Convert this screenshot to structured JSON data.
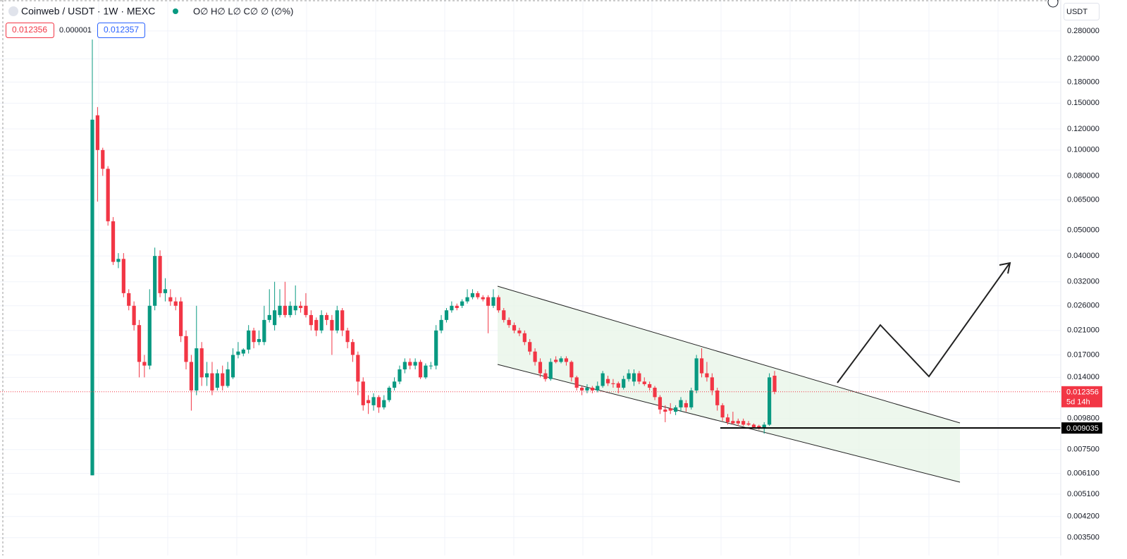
{
  "chart_data": {
    "type": "candlestick",
    "title": "Coinweb / USDT · 1W · MEXC",
    "ohlc_legend": "O∅ H∅ L∅ C∅ ∅ (∅%)",
    "quote": {
      "bid": {
        "value": 0.012356,
        "label": "0.012356"
      },
      "spread": {
        "value": 1e-06,
        "label": "0.000001"
      },
      "ask": {
        "value": 0.012357,
        "label": "0.012357"
      }
    },
    "currency": "USDT",
    "log_scale": true,
    "grid": true,
    "up_color": "#089981",
    "down_color": "#f23645",
    "series": [
      {
        "values": [
          [
            0.006,
            0.26,
            0.006,
            0.13
          ],
          [
            0.135,
            0.145,
            0.064,
            0.1
          ],
          [
            0.1,
            0.102,
            0.08,
            0.085
          ],
          [
            0.085,
            0.087,
            0.052,
            0.054
          ],
          [
            0.054,
            0.056,
            0.037,
            0.038
          ],
          [
            0.038,
            0.041,
            0.036,
            0.039
          ],
          [
            0.039,
            0.041,
            0.028,
            0.029
          ],
          [
            0.029,
            0.03,
            0.025,
            0.026
          ],
          [
            0.026,
            0.027,
            0.021,
            0.022
          ],
          [
            0.022,
            0.023,
            0.014,
            0.016
          ],
          [
            0.016,
            0.017,
            0.014,
            0.0155
          ],
          [
            0.0155,
            0.03,
            0.015,
            0.026
          ],
          [
            0.026,
            0.043,
            0.025,
            0.04
          ],
          [
            0.04,
            0.042,
            0.028,
            0.029
          ],
          [
            0.029,
            0.033,
            0.027,
            0.03
          ],
          [
            0.028,
            0.03,
            0.026,
            0.027
          ],
          [
            0.027,
            0.028,
            0.025,
            0.026
          ],
          [
            0.027,
            0.028,
            0.019,
            0.02
          ],
          [
            0.02,
            0.021,
            0.015,
            0.016
          ],
          [
            0.016,
            0.017,
            0.0105,
            0.0125
          ],
          [
            0.0125,
            0.026,
            0.012,
            0.018
          ],
          [
            0.018,
            0.019,
            0.013,
            0.014
          ],
          [
            0.014,
            0.016,
            0.013,
            0.0145
          ],
          [
            0.0145,
            0.016,
            0.012,
            0.0125
          ],
          [
            0.0128,
            0.015,
            0.0125,
            0.0145
          ],
          [
            0.0145,
            0.0155,
            0.0125,
            0.013
          ],
          [
            0.013,
            0.016,
            0.0128,
            0.015
          ],
          [
            0.014,
            0.018,
            0.0138,
            0.017
          ],
          [
            0.017,
            0.019,
            0.0165,
            0.0175
          ],
          [
            0.0172,
            0.018,
            0.0168,
            0.0178
          ],
          [
            0.0178,
            0.022,
            0.0172,
            0.021
          ],
          [
            0.021,
            0.0215,
            0.018,
            0.019
          ],
          [
            0.019,
            0.021,
            0.0185,
            0.0195
          ],
          [
            0.019,
            0.026,
            0.0185,
            0.023
          ],
          [
            0.023,
            0.03,
            0.0225,
            0.024
          ],
          [
            0.022,
            0.032,
            0.021,
            0.025
          ],
          [
            0.024,
            0.03,
            0.0235,
            0.026
          ],
          [
            0.026,
            0.032,
            0.0235,
            0.024
          ],
          [
            0.024,
            0.027,
            0.0235,
            0.026
          ],
          [
            0.025,
            0.031,
            0.024,
            0.026
          ],
          [
            0.026,
            0.027,
            0.0245,
            0.0255
          ],
          [
            0.026,
            0.029,
            0.0235,
            0.024
          ],
          [
            0.024,
            0.025,
            0.021,
            0.022
          ],
          [
            0.023,
            0.0235,
            0.02,
            0.021
          ],
          [
            0.021,
            0.025,
            0.0205,
            0.024
          ],
          [
            0.024,
            0.0245,
            0.022,
            0.023
          ],
          [
            0.023,
            0.024,
            0.017,
            0.021
          ],
          [
            0.021,
            0.026,
            0.0205,
            0.025
          ],
          [
            0.025,
            0.0255,
            0.02,
            0.021
          ],
          [
            0.021,
            0.0215,
            0.018,
            0.019
          ],
          [
            0.019,
            0.0195,
            0.016,
            0.017
          ],
          [
            0.017,
            0.0175,
            0.012,
            0.0135
          ],
          [
            0.0135,
            0.014,
            0.0105,
            0.011
          ],
          [
            0.0115,
            0.012,
            0.0102,
            0.0112
          ],
          [
            0.011,
            0.0122,
            0.0105,
            0.0118
          ],
          [
            0.0118,
            0.012,
            0.0103,
            0.0108
          ],
          [
            0.0108,
            0.012,
            0.0106,
            0.0115
          ],
          [
            0.0115,
            0.013,
            0.0113,
            0.0128
          ],
          [
            0.0128,
            0.014,
            0.0125,
            0.0135
          ],
          [
            0.0135,
            0.0155,
            0.0132,
            0.015
          ],
          [
            0.015,
            0.0165,
            0.0145,
            0.016
          ],
          [
            0.016,
            0.0165,
            0.015,
            0.0155
          ],
          [
            0.0155,
            0.0165,
            0.015,
            0.016
          ],
          [
            0.016,
            0.0163,
            0.0138,
            0.014
          ],
          [
            0.014,
            0.0158,
            0.0138,
            0.0155
          ],
          [
            0.0155,
            0.016,
            0.015,
            0.0155
          ],
          [
            0.0155,
            0.022,
            0.015,
            0.021
          ],
          [
            0.021,
            0.024,
            0.0205,
            0.023
          ],
          [
            0.023,
            0.0255,
            0.0225,
            0.025
          ],
          [
            0.025,
            0.027,
            0.0245,
            0.026
          ],
          [
            0.026,
            0.0265,
            0.025,
            0.0255
          ],
          [
            0.026,
            0.0275,
            0.0255,
            0.027
          ],
          [
            0.027,
            0.03,
            0.0265,
            0.028
          ],
          [
            0.028,
            0.03,
            0.0275,
            0.029
          ],
          [
            0.029,
            0.0295,
            0.0275,
            0.028
          ],
          [
            0.028,
            0.0285,
            0.027,
            0.0275
          ],
          [
            0.028,
            0.0285,
            0.0205,
            0.026
          ],
          [
            0.026,
            0.03,
            0.0255,
            0.028
          ],
          [
            0.028,
            0.0285,
            0.0245,
            0.025
          ],
          [
            0.025,
            0.0255,
            0.0225,
            0.023
          ],
          [
            0.023,
            0.0235,
            0.0215,
            0.022
          ],
          [
            0.022,
            0.0225,
            0.0205,
            0.021
          ],
          [
            0.021,
            0.0215,
            0.02,
            0.0205
          ],
          [
            0.0205,
            0.021,
            0.0185,
            0.019
          ],
          [
            0.019,
            0.0195,
            0.017,
            0.0175
          ],
          [
            0.0175,
            0.018,
            0.0155,
            0.016
          ],
          [
            0.016,
            0.0165,
            0.014,
            0.0145
          ],
          [
            0.0145,
            0.015,
            0.0135,
            0.0138
          ],
          [
            0.0138,
            0.0165,
            0.0136,
            0.016
          ],
          [
            0.0163,
            0.0168,
            0.0158,
            0.016
          ],
          [
            0.016,
            0.0168,
            0.0158,
            0.0165
          ],
          [
            0.0165,
            0.0168,
            0.0155,
            0.016
          ],
          [
            0.016,
            0.0162,
            0.0135,
            0.014
          ],
          [
            0.014,
            0.0142,
            0.0125,
            0.0128
          ],
          [
            0.0128,
            0.013,
            0.012,
            0.0125
          ],
          [
            0.0125,
            0.0132,
            0.0122,
            0.0128
          ],
          [
            0.0128,
            0.013,
            0.0122,
            0.0125
          ],
          [
            0.0125,
            0.0135,
            0.0123,
            0.013
          ],
          [
            0.013,
            0.0148,
            0.0128,
            0.0145
          ],
          [
            0.0138,
            0.0142,
            0.013,
            0.0133
          ],
          [
            0.0133,
            0.0138,
            0.0128,
            0.0132
          ],
          [
            0.0133,
            0.0135,
            0.0122,
            0.0128
          ],
          [
            0.0128,
            0.0142,
            0.0126,
            0.0138
          ],
          [
            0.0138,
            0.015,
            0.0135,
            0.0145
          ],
          [
            0.0135,
            0.015,
            0.013,
            0.0145
          ],
          [
            0.0145,
            0.0148,
            0.0132,
            0.0135
          ],
          [
            0.0135,
            0.014,
            0.013,
            0.0132
          ],
          [
            0.0132,
            0.0135,
            0.0125,
            0.0128
          ],
          [
            0.0128,
            0.013,
            0.0115,
            0.0118
          ],
          [
            0.0118,
            0.012,
            0.0102,
            0.0106
          ],
          [
            0.0106,
            0.011,
            0.0095,
            0.0104
          ],
          [
            0.0107,
            0.0112,
            0.0102,
            0.0105
          ],
          [
            0.0104,
            0.011,
            0.0101,
            0.0108
          ],
          [
            0.0108,
            0.0118,
            0.0104,
            0.0115
          ],
          [
            0.0112,
            0.0115,
            0.0104,
            0.0108
          ],
          [
            0.0108,
            0.0128,
            0.0106,
            0.0125
          ],
          [
            0.0125,
            0.017,
            0.0122,
            0.0165
          ],
          [
            0.0165,
            0.018,
            0.014,
            0.0145
          ],
          [
            0.0145,
            0.016,
            0.0135,
            0.014
          ],
          [
            0.014,
            0.0145,
            0.012,
            0.0125
          ],
          [
            0.0125,
            0.0128,
            0.0105,
            0.011
          ],
          [
            0.011,
            0.0112,
            0.0096,
            0.0099
          ],
          [
            0.0099,
            0.0102,
            0.0093,
            0.0095
          ],
          [
            0.0096,
            0.0104,
            0.0093,
            0.0094
          ],
          [
            0.0096,
            0.0098,
            0.0092,
            0.0094
          ],
          [
            0.0096,
            0.0098,
            0.0092,
            0.0093
          ],
          [
            0.0094,
            0.0096,
            0.0092,
            0.0093
          ],
          [
            0.0093,
            0.0094,
            0.009,
            0.0091
          ],
          [
            0.0092,
            0.0093,
            0.0089,
            0.009
          ],
          [
            0.009,
            0.0095,
            0.0086,
            0.0093
          ],
          [
            0.0093,
            0.0145,
            0.0092,
            0.014
          ],
          [
            0.0142,
            0.0148,
            0.0121,
            0.012356
          ]
        ]
      }
    ],
    "ylim": [
      0.003,
      0.366
    ],
    "yticks": [
      {
        "value": 0.28,
        "label": "0.280000"
      },
      {
        "value": 0.22,
        "label": "0.220000"
      },
      {
        "value": 0.18,
        "label": "0.180000"
      },
      {
        "value": 0.15,
        "label": "0.150000"
      },
      {
        "value": 0.12,
        "label": "0.120000"
      },
      {
        "value": 0.1,
        "label": "0.100000"
      },
      {
        "value": 0.08,
        "label": "0.080000"
      },
      {
        "value": 0.065,
        "label": "0.065000"
      },
      {
        "value": 0.05,
        "label": "0.050000"
      },
      {
        "value": 0.04,
        "label": "0.040000"
      },
      {
        "value": 0.032,
        "label": "0.032000"
      },
      {
        "value": 0.026,
        "label": "0.026000"
      },
      {
        "value": 0.021,
        "label": "0.021000"
      },
      {
        "value": 0.017,
        "label": "0.017000"
      },
      {
        "value": 0.014,
        "label": "0.014000"
      },
      {
        "value": 0.0098,
        "label": "0.009800"
      },
      {
        "value": 0.0075,
        "label": "0.007500"
      },
      {
        "value": 0.0061,
        "label": "0.006100"
      },
      {
        "value": 0.0051,
        "label": "0.005100"
      },
      {
        "value": 0.0042,
        "label": "0.004200"
      },
      {
        "value": 0.0035,
        "label": "0.003500"
      }
    ],
    "last_price": {
      "value": 0.012356,
      "label": "0.012356"
    },
    "countdown": "5d 14h",
    "level": {
      "value": 0.009035,
      "label": "0.009035"
    }
  }
}
